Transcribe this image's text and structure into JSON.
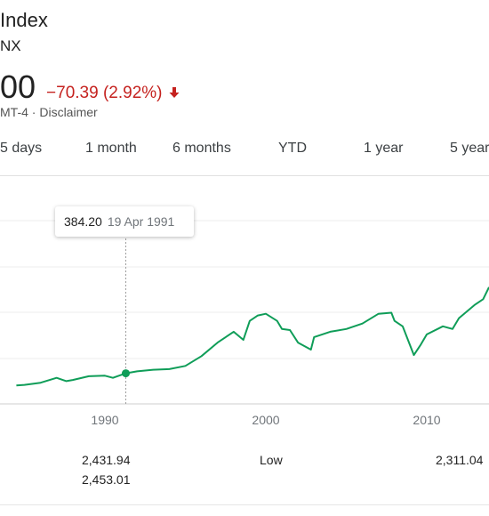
{
  "header": {
    "title": "Index",
    "ticker": "NX",
    "price": "00",
    "change": "−70.39 (2.92%)",
    "meta": "MT-4 · ",
    "disclaimer": "Disclaimer",
    "change_color": "#c5221f"
  },
  "ranges": [
    "5 days",
    "1 month",
    "6 months",
    "YTD",
    "1 year",
    "5 year"
  ],
  "tooltip": {
    "value": "384.20",
    "date": "19 Apr 1991"
  },
  "stats": {
    "col1_row1": "2,431.94",
    "col1_row2": "2,453.01",
    "col2_label": "Low",
    "col3_row1": "2,311.04"
  },
  "chart_data": {
    "type": "line",
    "x_ticks": [
      "1990",
      "2000",
      "2010"
    ],
    "line_color": "#0f9d58",
    "grid": true,
    "series": [
      {
        "x": [
          1984.5,
          1985,
          1986,
          1987,
          1987.6,
          1988,
          1989,
          1990,
          1990.5,
          1991.3,
          1992,
          1993,
          1994,
          1995,
          1996,
          1997,
          1998,
          1998.6,
          1999,
          1999.5,
          2000,
          2000.7,
          2001,
          2001.5,
          2002,
          2002.8,
          2003,
          2004,
          2005,
          2006,
          2007,
          2007.8,
          2008,
          2008.5,
          2009.2,
          2009.6,
          2010,
          2011,
          2011.6,
          2012,
          2013,
          2013.5,
          2014.2
        ],
        "y": [
          160,
          170,
          210,
          300,
          240,
          260,
          330,
          340,
          300,
          384,
          420,
          450,
          460,
          520,
          700,
          950,
          1150,
          1000,
          1350,
          1450,
          1480,
          1350,
          1200,
          1180,
          950,
          820,
          1050,
          1150,
          1200,
          1300,
          1480,
          1500,
          1350,
          1250,
          720,
          900,
          1100,
          1250,
          1200,
          1400,
          1650,
          1750,
          1970
        ]
      }
    ],
    "marker": {
      "x": 1991.3,
      "y": 384.2
    }
  }
}
